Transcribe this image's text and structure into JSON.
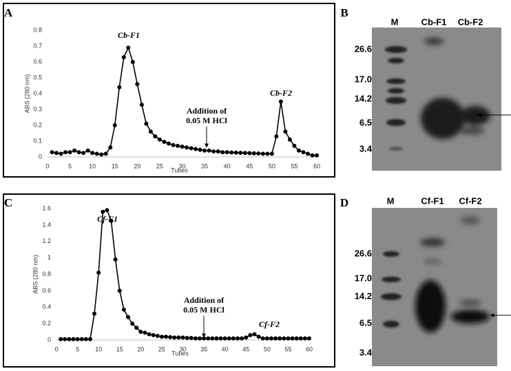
{
  "chart_data": [
    {
      "type": "line",
      "panel": "A",
      "xlabel": "Tubes",
      "ylabel": "ABS (280 nm)",
      "annotations": [
        "Cb-F1",
        "Cb-F2",
        "Addition of",
        "0.05 M HCl"
      ],
      "xlim": [
        0,
        60
      ],
      "xticks": [
        0,
        5,
        10,
        15,
        20,
        25,
        30,
        35,
        40,
        45,
        50,
        55,
        60
      ],
      "ylim": [
        0,
        0.8
      ],
      "yticks": [
        0,
        0.1,
        0.2,
        0.3,
        0.4,
        0.5,
        0.6,
        0.7,
        0.8
      ],
      "x": [
        1,
        2,
        3,
        4,
        5,
        6,
        7,
        8,
        9,
        10,
        11,
        12,
        13,
        14,
        15,
        16,
        17,
        18,
        19,
        20,
        21,
        22,
        23,
        24,
        25,
        26,
        27,
        28,
        29,
        30,
        31,
        32,
        33,
        34,
        35,
        36,
        37,
        38,
        39,
        40,
        41,
        42,
        43,
        44,
        45,
        46,
        47,
        48,
        49,
        50,
        51,
        52,
        53,
        54,
        55,
        56,
        57,
        58,
        59,
        60
      ],
      "series": [
        {
          "color": "#000000",
          "values": [
            0.03,
            0.025,
            0.02,
            0.03,
            0.03,
            0.04,
            0.03,
            0.025,
            0.04,
            0.025,
            0.02,
            0.015,
            0.02,
            0.06,
            0.2,
            0.44,
            0.63,
            0.69,
            0.6,
            0.46,
            0.33,
            0.21,
            0.16,
            0.13,
            0.11,
            0.095,
            0.085,
            0.075,
            0.07,
            0.065,
            0.06,
            0.055,
            0.05,
            0.045,
            0.04,
            0.04,
            0.035,
            0.035,
            0.03,
            0.03,
            0.028,
            0.027,
            0.026,
            0.025,
            0.024,
            0.023,
            0.022,
            0.02,
            0.02,
            0.02,
            0.13,
            0.35,
            0.16,
            0.11,
            0.07,
            0.04,
            0.03,
            0.02,
            0.01,
            0.01
          ]
        }
      ]
    },
    {
      "type": "line",
      "panel": "C",
      "xlabel": "Tubes",
      "ylabel": "ABS (280 nm)",
      "annotations": [
        "Cf-F1",
        "Cf-F2",
        "Addition of",
        "0.05 M HCl"
      ],
      "xlim": [
        0,
        60
      ],
      "xticks": [
        0,
        5,
        10,
        15,
        20,
        25,
        30,
        35,
        40,
        45,
        50,
        55,
        60
      ],
      "ylim": [
        0,
        1.6
      ],
      "yticks": [
        0,
        0.2,
        0.4,
        0.6,
        0.8,
        1,
        1.2,
        1.4,
        1.6
      ],
      "x": [
        1,
        2,
        3,
        4,
        5,
        6,
        7,
        8,
        9,
        10,
        11,
        12,
        13,
        14,
        15,
        16,
        17,
        18,
        19,
        20,
        21,
        22,
        23,
        24,
        25,
        26,
        27,
        28,
        29,
        30,
        31,
        32,
        33,
        34,
        35,
        36,
        37,
        38,
        39,
        40,
        41,
        42,
        43,
        44,
        45,
        46,
        47,
        48,
        49,
        50,
        51,
        52,
        53,
        54,
        55,
        56,
        57,
        58,
        59,
        60
      ],
      "series": [
        {
          "color": "#000000",
          "values": [
            0.01,
            0.01,
            0.01,
            0.01,
            0.01,
            0.01,
            0.01,
            0.01,
            0.32,
            0.82,
            1.56,
            1.58,
            1.45,
            0.98,
            0.6,
            0.37,
            0.28,
            0.2,
            0.15,
            0.1,
            0.09,
            0.07,
            0.06,
            0.05,
            0.04,
            0.04,
            0.035,
            0.03,
            0.03,
            0.03,
            0.025,
            0.025,
            0.02,
            0.02,
            0.02,
            0.02,
            0.02,
            0.02,
            0.02,
            0.02,
            0.02,
            0.02,
            0.02,
            0.02,
            0.03,
            0.06,
            0.07,
            0.04,
            0.02,
            0.02,
            0.02,
            0.02,
            0.02,
            0.02,
            0.02,
            0.02,
            0.02,
            0.02,
            0.02,
            0.02
          ]
        }
      ]
    }
  ],
  "gels": [
    {
      "panel": "B",
      "lanes": [
        "M",
        "Cb-F1",
        "Cb-F2"
      ],
      "markers": [
        "26.6",
        "17.0",
        "14.2",
        "6.5",
        "3.4"
      ]
    },
    {
      "panel": "D",
      "lanes": [
        "M",
        "Cf-F1",
        "Cf-F2"
      ],
      "markers": [
        "26.6",
        "17.0",
        "14.2",
        "6.5",
        "3.4"
      ]
    }
  ]
}
